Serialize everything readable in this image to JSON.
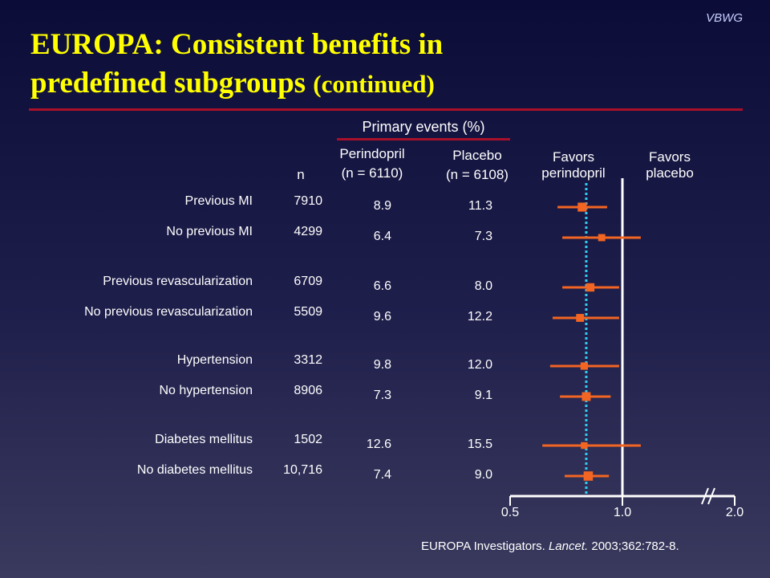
{
  "brand": "VBWG",
  "title": {
    "line1": "EUROPA: Consistent benefits in",
    "line2_main": "predefined subgroups",
    "line2_small": "(continued)"
  },
  "headers": {
    "primary_events": "Primary events (%)",
    "n": "n",
    "perindopril": "Perindopril",
    "perindopril_n": "(n = 6110)",
    "placebo": "Placebo",
    "placebo_n": "(n = 6108)",
    "favors_perindopril_1": "Favors",
    "favors_perindopril_2": "perindopril",
    "favors_placebo_1": "Favors",
    "favors_placebo_2": "placebo"
  },
  "chart_data": {
    "type": "forest",
    "x_scale": "log",
    "xlim": [
      0.5,
      2.0
    ],
    "ticks": [
      "0.5",
      "1.0",
      "2.0"
    ],
    "reference_line": 1.0,
    "overall_estimate": 0.8,
    "axis_break": true,
    "rows": [
      {
        "label": "Previous MI",
        "n": "7910",
        "perindopril": "8.9",
        "placebo": "11.3",
        "est": 0.78,
        "lo": 0.67,
        "hi": 0.91,
        "weight": 0.65
      },
      {
        "label": "No previous MI",
        "n": "4299",
        "perindopril": "6.4",
        "placebo": "7.3",
        "est": 0.88,
        "lo": 0.69,
        "hi": 1.12,
        "weight": 0.36
      },
      {
        "label": "Previous revascularization",
        "n": "6709",
        "perindopril": "6.6",
        "placebo": "8.0",
        "est": 0.82,
        "lo": 0.69,
        "hi": 0.98,
        "weight": 0.55
      },
      {
        "label": "No previous revascularization",
        "n": "5509",
        "perindopril": "9.6",
        "placebo": "12.2",
        "est": 0.77,
        "lo": 0.65,
        "hi": 0.98,
        "weight": 0.48
      },
      {
        "label": "Hypertension",
        "n": "3312",
        "perindopril": "9.8",
        "placebo": "12.0",
        "est": 0.79,
        "lo": 0.64,
        "hi": 0.98,
        "weight": 0.4
      },
      {
        "label": "No hypertension",
        "n": "8906",
        "perindopril": "7.3",
        "placebo": "9.1",
        "est": 0.8,
        "lo": 0.68,
        "hi": 0.93,
        "weight": 0.62
      },
      {
        "label": "Diabetes mellitus",
        "n": "1502",
        "perindopril": "12.6",
        "placebo": "15.5",
        "est": 0.79,
        "lo": 0.61,
        "hi": 1.12,
        "weight": 0.3
      },
      {
        "label": "No diabetes mellitus",
        "n": "10,716",
        "perindopril": "7.4",
        "placebo": "9.0",
        "est": 0.81,
        "lo": 0.7,
        "hi": 0.92,
        "weight": 0.7
      }
    ]
  },
  "citation": {
    "authors": "EUROPA Investigators.",
    "journal": "Lancet.",
    "ref": "2003;362:782-8."
  },
  "colors": {
    "title": "#ffff00",
    "marker": "#f26522",
    "reference_dashed": "#33ccee",
    "axis": "#ffffff",
    "rule": "#a8102a"
  }
}
